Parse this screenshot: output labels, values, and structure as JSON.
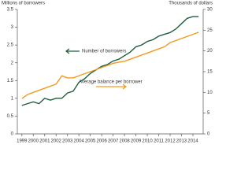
{
  "chart_data": {
    "type": "line",
    "y_label": "Millions of borrowers",
    "y2_label": "Thousands of dollars",
    "annotations": [
      "Number of borrowers",
      "Average balance per borrower"
    ],
    "x": [
      1999,
      1999.5,
      2000,
      2000.5,
      2001,
      2001.5,
      2002,
      2002.5,
      2003,
      2003.5,
      2004,
      2004.5,
      2005,
      2005.5,
      2006,
      2006.5,
      2007,
      2007.5,
      2008,
      2008.5,
      2009,
      2009.5,
      2010,
      2010.5,
      2011,
      2011.5,
      2012,
      2012.5,
      2013,
      2013.5,
      2014,
      2014.5
    ],
    "series": [
      {
        "name": "Number of borrowers",
        "color": "#1d5e3b",
        "axis": "y",
        "values": [
          0.8,
          0.85,
          0.9,
          0.85,
          1.0,
          0.95,
          1.0,
          1.0,
          1.15,
          1.2,
          1.45,
          1.55,
          1.7,
          1.8,
          1.9,
          1.95,
          2.05,
          2.1,
          2.2,
          2.3,
          2.45,
          2.5,
          2.6,
          2.65,
          2.75,
          2.8,
          2.85,
          2.95,
          3.1,
          3.25,
          3.3,
          3.3
        ]
      },
      {
        "name": "Average balance per borrower",
        "color": "#f39a1e",
        "axis": "y2",
        "values": [
          8.5,
          9.5,
          10,
          10.5,
          11,
          11.5,
          12,
          14,
          13.5,
          13.5,
          14,
          14.5,
          15,
          15.5,
          16,
          16.5,
          17,
          17.3,
          17.5,
          18,
          18.5,
          19,
          19.5,
          20,
          20.5,
          21,
          22,
          22.5,
          23,
          23.5,
          24,
          24.5
        ]
      }
    ],
    "xlim": [
      1998.6,
      2014.9
    ],
    "xticks": [
      1999,
      2000,
      2001,
      2002,
      2003,
      2004,
      2005,
      2006,
      2007,
      2008,
      2009,
      2010,
      2011,
      2012,
      2013,
      2014
    ],
    "ylim": [
      0,
      3.5
    ],
    "yticks": [
      0,
      0.5,
      1,
      1.5,
      2,
      2.5,
      3,
      3.5
    ],
    "y2lim": [
      0,
      30
    ],
    "y2ticks": [
      0,
      5,
      10,
      15,
      20,
      25,
      30
    ]
  }
}
